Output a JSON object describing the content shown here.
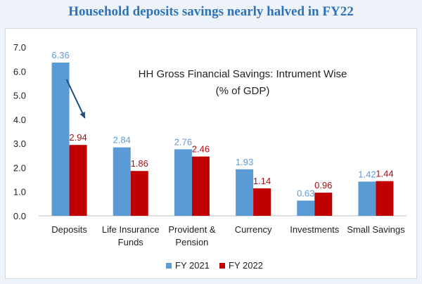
{
  "page": {
    "title": "Household deposits savings nearly halved in FY22"
  },
  "chart_data": {
    "type": "bar",
    "title": "HH Gross Financial Savings: Intrument Wise",
    "subtitle": "(% of GDP)",
    "categories": [
      [
        "Deposits"
      ],
      [
        "Life Insurance",
        "Funds"
      ],
      [
        "Provident &",
        "Pension"
      ],
      [
        "Currency"
      ],
      [
        "Investments"
      ],
      [
        "Small Savings"
      ]
    ],
    "series": [
      {
        "name": "FY 2021",
        "values": [
          6.36,
          2.84,
          2.76,
          1.93,
          0.63,
          1.42
        ],
        "color": "#5b9bd5",
        "label_color": "#5b9bd5"
      },
      {
        "name": "FY 2022",
        "values": [
          2.94,
          1.86,
          2.46,
          1.14,
          0.96,
          1.44
        ],
        "color": "#c00000",
        "label_color": "#a50f15"
      }
    ],
    "yticks": [
      "0.0",
      "1.0",
      "2.0",
      "3.0",
      "4.0",
      "5.0",
      "6.0",
      "7.0"
    ],
    "ylim": [
      0,
      7
    ],
    "grid": false,
    "legend_position": "bottom",
    "annotation": {
      "type": "arrow",
      "color": "#1f4e79",
      "from_series": 0,
      "to_series": 1,
      "category_index": 0
    }
  }
}
